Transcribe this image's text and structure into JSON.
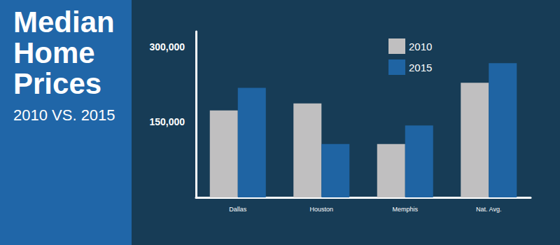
{
  "chart_data": {
    "type": "bar",
    "title": "Median Home Prices",
    "subtitle": "2010 VS. 2015",
    "categories": [
      "Dallas",
      "Houston",
      "Memphis",
      "Nat. Avg."
    ],
    "series": [
      {
        "name": "2010",
        "color": "#c0bfc0",
        "values": [
          173000,
          187000,
          106000,
          228000
        ]
      },
      {
        "name": "2015",
        "color": "#1f64a3",
        "values": [
          218000,
          106000,
          143000,
          267000
        ]
      }
    ],
    "ylim": [
      0,
      330000
    ],
    "yticks": [
      {
        "value": 150000,
        "label": "150,000"
      },
      {
        "value": 300000,
        "label": "300,000"
      }
    ],
    "grid": false,
    "legend": "upper right",
    "data_labels": false
  }
}
